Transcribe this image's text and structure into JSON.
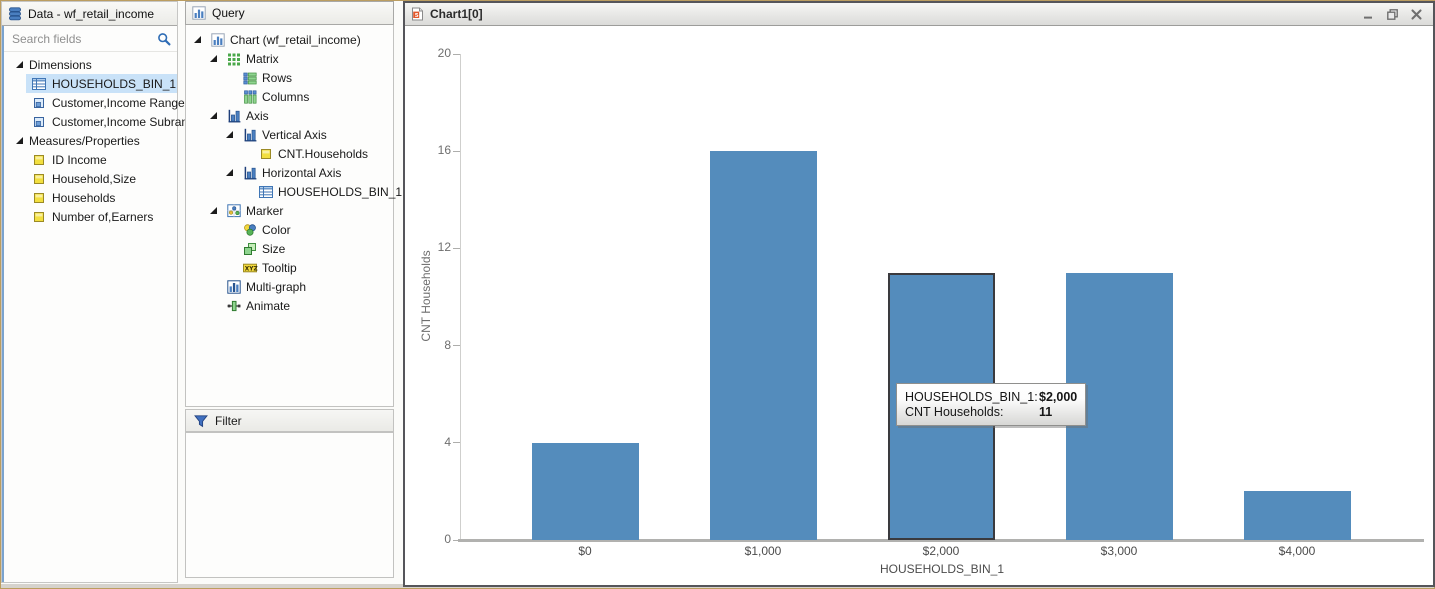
{
  "colors": {
    "bar_blue": "#548cbc",
    "selected_row": "#c9e2f8",
    "highlight_border": "#3a3a3e"
  },
  "data_panel": {
    "title": "Data - wf_retail_income",
    "search_placeholder": "Search fields",
    "tree": [
      {
        "label": "Dimensions",
        "type": "section"
      },
      {
        "label": "HOUSEHOLDS_BIN_1",
        "type": "item",
        "icon": "table",
        "selected": true
      },
      {
        "label": "Customer,Income Range",
        "type": "item",
        "icon": "dim"
      },
      {
        "label": "Customer,Income Subrange",
        "type": "item",
        "icon": "dim"
      },
      {
        "label": "Measures/Properties",
        "type": "section"
      },
      {
        "label": "ID Income",
        "type": "item",
        "icon": "measure"
      },
      {
        "label": "Household,Size",
        "type": "item",
        "icon": "measure"
      },
      {
        "label": "Households",
        "type": "item",
        "icon": "measure"
      },
      {
        "label": "Number of,Earners",
        "type": "item",
        "icon": "measure"
      }
    ]
  },
  "query_panel": {
    "title": "Query",
    "tree": [
      {
        "label": "Chart (wf_retail_income)",
        "depth": 0,
        "tri": true,
        "icon": "chart"
      },
      {
        "label": "Matrix",
        "depth": 1,
        "tri": true,
        "icon": "matrix"
      },
      {
        "label": "Rows",
        "depth": 2,
        "tri": false,
        "icon": "rows"
      },
      {
        "label": "Columns",
        "depth": 2,
        "tri": false,
        "icon": "columns"
      },
      {
        "label": "Axis",
        "depth": 1,
        "tri": true,
        "icon": "axis"
      },
      {
        "label": "Vertical Axis",
        "depth": 2,
        "tri": true,
        "icon": "axis"
      },
      {
        "label": "CNT.Households",
        "depth": 3,
        "tri": false,
        "icon": "measure"
      },
      {
        "label": "Horizontal Axis",
        "depth": 2,
        "tri": true,
        "icon": "axis"
      },
      {
        "label": "HOUSEHOLDS_BIN_1",
        "depth": 3,
        "tri": false,
        "icon": "table"
      },
      {
        "label": "Marker",
        "depth": 1,
        "tri": true,
        "icon": "marker"
      },
      {
        "label": "Color",
        "depth": 2,
        "tri": false,
        "icon": "color"
      },
      {
        "label": "Size",
        "depth": 2,
        "tri": false,
        "icon": "size"
      },
      {
        "label": "Tooltip",
        "depth": 2,
        "tri": false,
        "icon": "xyz"
      },
      {
        "label": "Multi-graph",
        "depth": 1,
        "tri": false,
        "icon": "multigraph"
      },
      {
        "label": "Animate",
        "depth": 1,
        "tri": false,
        "icon": "animate"
      }
    ]
  },
  "filter_panel": {
    "title": "Filter"
  },
  "chart_window": {
    "title": "Chart1[0]",
    "controls": [
      "minimize",
      "restore",
      "close"
    ],
    "tooltip": {
      "rows": [
        {
          "label": "HOUSEHOLDS_BIN_1:",
          "value": "$2,000"
        },
        {
          "label": "CNT Households:",
          "value": "11"
        }
      ]
    }
  },
  "chart_data": {
    "type": "bar",
    "title": "",
    "categories": [
      "$0",
      "$1,000",
      "$2,000",
      "$3,000",
      "$4,000"
    ],
    "values": [
      4,
      16,
      11,
      11,
      2
    ],
    "xlabel": "HOUSEHOLDS_BIN_1",
    "ylabel": "CNT Households",
    "ylim": [
      0,
      20
    ],
    "ytick_step": 4,
    "grid": false,
    "legend": "none",
    "bar_color": "#548cbc",
    "highlighted_category": "$2,000"
  }
}
